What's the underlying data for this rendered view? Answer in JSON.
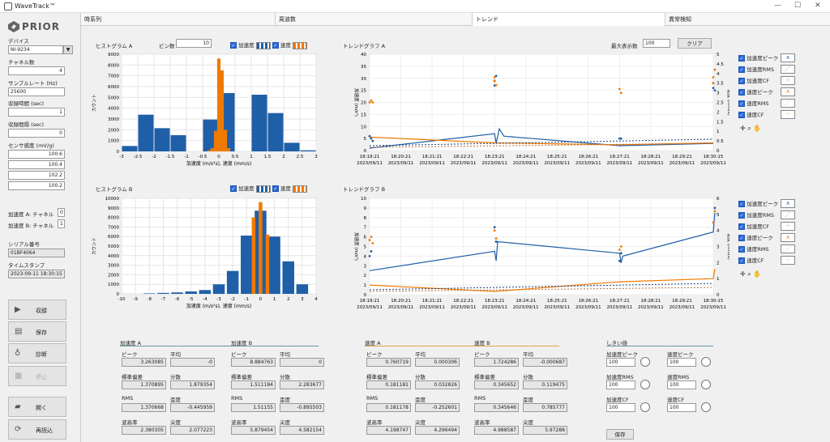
{
  "window": {
    "title": "WaveTrack™",
    "logo": "PRIOR"
  },
  "tabs": [
    "時系列",
    "周波数",
    "トレンド",
    "異常検知"
  ],
  "left": {
    "device_label": "デバイス",
    "device": "NI-9234",
    "channels_label": "チャネル数",
    "channels": "4",
    "rate_label": "サンプルレート (Hz)",
    "rate": "25600",
    "collect_label": "収録時間 (sec)",
    "collect": "1",
    "interval_label": "収録間隔 (sec)",
    "interval": "0",
    "sens_label": "センサ感度 (mV/g)",
    "sens": [
      "100.6",
      "100.4",
      "102.2",
      "100.2"
    ],
    "accA_label": "加速度 A: チャネル",
    "accA": "0",
    "accB_label": "加速度 B: チャネル",
    "accB": "1",
    "serial_label": "シリアル番号",
    "serial": "01BF4064",
    "ts_label": "タイムスタンプ",
    "ts": "2023-09-11 18:30:15",
    "buttons": [
      "収録",
      "保存",
      "診断",
      "停止",
      "開く",
      "再読込"
    ]
  },
  "histA": {
    "title": "ヒストグラム A",
    "bins_label": "ビン数",
    "bins": "10",
    "leg1": "加速度",
    "leg2": "速度",
    "xlabel": "加速度 (m/s²s), 速度 (mm/s)",
    "ylabel": "カウント",
    "xt": [
      "-3",
      "-2.5",
      "-2",
      "-1.5",
      "-1",
      "-0.5",
      "0",
      "0.5",
      "1",
      "1.5",
      "2",
      "2.5",
      "3"
    ],
    "yt": [
      "0",
      "1000",
      "2000",
      "3000",
      "4000",
      "5000",
      "6000",
      "7000",
      "8000",
      "9000"
    ]
  },
  "histB": {
    "title": "ヒストグラム B",
    "leg1": "加速度",
    "leg2": "速度",
    "xlabel": "加速度 (m/s²s), 速度 (mm/s)",
    "ylabel": "カウント",
    "xt": [
      "-10",
      "-9",
      "-8",
      "-7",
      "-6",
      "-5",
      "-4",
      "-3",
      "-2",
      "-1",
      "0",
      "1",
      "2",
      "3",
      "4"
    ],
    "yt": [
      "0",
      "1000",
      "2000",
      "3000",
      "4000",
      "5000",
      "6000",
      "7000",
      "8000",
      "9000",
      "10000"
    ]
  },
  "trendA": {
    "title": "トレンドグラフ A",
    "max_label": "最大表示数",
    "max": "100",
    "clear": "クリア",
    "yl": "加速度 (m/s²)",
    "yr": "速度 (mm/s)",
    "yt": [
      "0",
      "5",
      "10",
      "15",
      "20",
      "25",
      "30",
      "35",
      "40"
    ],
    "yrt": [
      "0",
      "0.5",
      "1",
      "1.5",
      "2",
      "2.5",
      "3",
      "3.5",
      "4",
      "4.5",
      "5"
    ]
  },
  "trendB": {
    "title": "トレンドグラフ B",
    "yl": "加速度 (m/s²)",
    "yr": "速度 (mm/s)",
    "yt": [
      "0",
      "1",
      "2",
      "3",
      "4",
      "5",
      "6",
      "7",
      "8",
      "9",
      "10"
    ],
    "yrt": [
      "0",
      "1",
      "2",
      "3",
      "4",
      "5",
      "6"
    ]
  },
  "trend_x": [
    [
      "18:19:21",
      "2023/09/11"
    ],
    [
      "18:20:21",
      "2023/09/11"
    ],
    [
      "18:21:21",
      "2023/09/11"
    ],
    [
      "18:22:21",
      "2023/09/11"
    ],
    [
      "18:23:21",
      "2023/09/11"
    ],
    [
      "18:24:21",
      "2023/09/11"
    ],
    [
      "18:25:21",
      "2023/09/11"
    ],
    [
      "18:26:21",
      "2023/09/11"
    ],
    [
      "18:27:21",
      "2023/09/11"
    ],
    [
      "18:28:21",
      "2023/09/11"
    ],
    [
      "18:29:21",
      "2023/09/11"
    ],
    [
      "18:30:15",
      "2023/09/11"
    ]
  ],
  "trend_legend": [
    "加速度ピーク",
    "加速度RMS",
    "加速度CF",
    "速度ピーク",
    "速度RMS",
    "速度CF"
  ],
  "stats": {
    "accA": {
      "title": "加速度 A",
      "l": [
        "ピーク",
        "平均",
        "標準偏差",
        "分散",
        "RMS",
        "歪度",
        "波高率",
        "尖度"
      ],
      "v": [
        "3.263085",
        "-0",
        "1.370895",
        "1.879354",
        "1.370668",
        "-0.445959",
        "2.380305",
        "2.077223"
      ]
    },
    "accB": {
      "title": "加速度 B",
      "l": [
        "ピーク",
        "平均",
        "標準偏差",
        "分散",
        "RMS",
        "歪度",
        "波高率",
        "尖度"
      ],
      "v": [
        "8.884763",
        "0",
        "1.511184",
        "2.283677",
        "1.51155",
        "-0.895503",
        "5.879454",
        "4.582154"
      ]
    },
    "velA": {
      "title": "速度 A",
      "l": [
        "ピーク",
        "平均",
        "標準偏差",
        "分散",
        "RMS",
        "歪度",
        "波高率",
        "尖度"
      ],
      "v": [
        "0.760719",
        "0.000306",
        "0.181181",
        "0.032826",
        "0.181178",
        "-0.252601",
        "4.198747",
        "4.296494"
      ]
    },
    "velB": {
      "title": "速度 B",
      "l": [
        "ピーク",
        "平均",
        "標準偏差",
        "分散",
        "RMS",
        "歪度",
        "波高率",
        "尖度"
      ],
      "v": [
        "1.724286",
        "-0.000687",
        "0.345652",
        "0.119475",
        "0.345646",
        "0.785777",
        "4.988587",
        "5.97288"
      ]
    }
  },
  "threshold": {
    "title": "しきい値",
    "l": [
      "加速度ピーク",
      "速度ピーク",
      "加速度RMS",
      "速度RMS",
      "加速度CF",
      "速度CF"
    ],
    "v": [
      "100",
      "100",
      "100",
      "100",
      "100",
      "100"
    ],
    "save": "保存"
  },
  "chart_data": [
    {
      "type": "bar",
      "title": "ヒストグラム A",
      "series": [
        {
          "name": "加速度",
          "x": [
            -2.75,
            -2.25,
            -1.75,
            -1.25,
            -0.75,
            -0.25,
            0.25,
            0.75,
            1.25,
            1.75,
            2.25,
            2.75
          ],
          "values": [
            500,
            3400,
            2150,
            1500,
            0,
            2950,
            5400,
            0,
            5250,
            3550,
            800,
            100
          ]
        },
        {
          "name": "速度",
          "x": [
            -0.3,
            -0.2,
            -0.1,
            0,
            0.1,
            0.2,
            0.3
          ],
          "values": [
            100,
            300,
            1900,
            8600,
            7500,
            2000,
            300
          ]
        }
      ],
      "ylim": [
        0,
        9000
      ]
    },
    {
      "type": "bar",
      "title": "ヒストグラム B",
      "series": [
        {
          "name": "加速度",
          "x": [
            -9,
            -8,
            -7,
            -6,
            -5,
            -4,
            -3,
            -2,
            -1,
            0,
            1,
            2,
            3
          ],
          "values": [
            0,
            50,
            100,
            150,
            250,
            400,
            1000,
            2400,
            6100,
            8700,
            6000,
            3400,
            1000
          ]
        },
        {
          "name": "速度",
          "x": [
            -0.5,
            0,
            0.5
          ],
          "values": [
            8000,
            9600,
            6200
          ]
        }
      ],
      "ylim": [
        0,
        10000
      ]
    }
  ],
  "colors": {
    "blue": "#1f5fa8",
    "orange": "#f07a00"
  }
}
